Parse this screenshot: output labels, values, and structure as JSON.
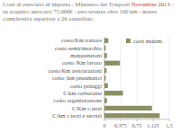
{
  "chart_data": {
    "type": "bar",
    "orientation": "horizontal",
    "title": "Costi di esercizio di impresa - Ministero dei Trasporti Novembre 2013",
    "subtitle": "su acquisto autocarri 75.000€ - percorrenza oltre 100 km - massa complessiva superiore a 26 tonnellate.",
    "categories": [
      "costo/Km trattore",
      "costo semirimorchio",
      "manutenzioni",
      "costo /Km lavoro",
      "costo/Km assicurazioni",
      "costo /km pneumatici",
      "costo pedaggi",
      "C/km carburante",
      "costo organizzazione",
      "C/Km c.terzi",
      "C/km c.terzi e servizi"
    ],
    "series": [
      {
        "name": "costi minimi",
        "color": "#8c8f62",
        "values": [
          0.09,
          0.03,
          0.06,
          0.36,
          0.05,
          0.03,
          0.08,
          0.43,
          0.06,
          1.1,
          1.28
        ]
      }
    ],
    "xlim": [
      0,
      1.5
    ],
    "xticks": [
      0,
      {
        "value": 0.375,
        "label": "0,375"
      },
      {
        "value": 0.75,
        "label": "0,75"
      },
      {
        "value": 1.125,
        "label": "1,125"
      },
      {
        "value": 1.5,
        "label": "1,5"
      }
    ],
    "grid": true,
    "legend": "top-right"
  }
}
